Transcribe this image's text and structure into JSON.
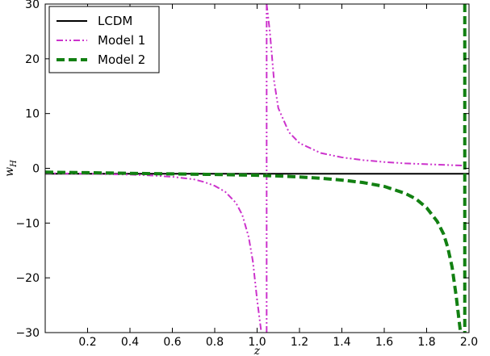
{
  "chart_data": {
    "type": "line",
    "title": "",
    "xlabel": "z",
    "ylabel_main": "w",
    "ylabel_sub": "H",
    "xlim": [
      0.0,
      2.0
    ],
    "ylim": [
      -30,
      30
    ],
    "xticks": [
      0.2,
      0.4,
      0.6,
      0.8,
      1.0,
      1.2,
      1.4,
      1.6,
      1.8,
      2.0
    ],
    "xtick_labels": [
      "0.2",
      "0.4",
      "0.6",
      "0.8",
      "1.0",
      "1.2",
      "1.4",
      "1.6",
      "1.8",
      "2.0"
    ],
    "yticks": [
      -30,
      -20,
      -10,
      0,
      10,
      20,
      30
    ],
    "ytick_labels": [
      "−30",
      "−20",
      "−10",
      "0",
      "10",
      "20",
      "30"
    ],
    "grid": false,
    "legend_position": "top-left",
    "series": [
      {
        "name": "LCDM",
        "color": "#000000",
        "style": "solid",
        "segments": [
          [
            [
              0.0,
              -1.0
            ],
            [
              2.0,
              -1.0
            ]
          ]
        ]
      },
      {
        "name": "Model 1",
        "color": "#cc33cc",
        "style": "dashdot",
        "segments": [
          [
            [
              0.0,
              -0.9
            ],
            [
              0.2,
              -1.0
            ],
            [
              0.4,
              -1.15
            ],
            [
              0.5,
              -1.3
            ],
            [
              0.6,
              -1.55
            ],
            [
              0.7,
              -2.0
            ],
            [
              0.75,
              -2.5
            ],
            [
              0.8,
              -3.2
            ],
            [
              0.85,
              -4.3
            ],
            [
              0.9,
              -6.3
            ],
            [
              0.93,
              -8.5
            ],
            [
              0.96,
              -12.5
            ],
            [
              0.98,
              -17.0
            ],
            [
              1.0,
              -24.0
            ],
            [
              1.02,
              -30.0
            ]
          ],
          [
            [
              1.045,
              30.0
            ],
            [
              1.06,
              25.0
            ],
            [
              1.08,
              16.0
            ],
            [
              1.1,
              11.0
            ],
            [
              1.15,
              6.6
            ],
            [
              1.2,
              4.6
            ],
            [
              1.3,
              2.8
            ],
            [
              1.4,
              2.0
            ],
            [
              1.5,
              1.5
            ],
            [
              1.6,
              1.15
            ],
            [
              1.7,
              0.9
            ],
            [
              1.8,
              0.75
            ],
            [
              1.9,
              0.6
            ],
            [
              1.98,
              0.5
            ]
          ]
        ],
        "verticals": [
          1.045
        ]
      },
      {
        "name": "Model 2",
        "color": "#128012",
        "style": "dashed",
        "segments": [
          [
            [
              0.0,
              -0.7
            ],
            [
              0.2,
              -0.8
            ],
            [
              0.4,
              -0.92
            ],
            [
              0.6,
              -1.02
            ],
            [
              0.8,
              -1.12
            ],
            [
              1.0,
              -1.28
            ],
            [
              1.1,
              -1.4
            ],
            [
              1.2,
              -1.58
            ],
            [
              1.3,
              -1.82
            ],
            [
              1.4,
              -2.15
            ],
            [
              1.5,
              -2.6
            ],
            [
              1.6,
              -3.3
            ],
            [
              1.7,
              -4.6
            ],
            [
              1.75,
              -5.6
            ],
            [
              1.8,
              -7.2
            ],
            [
              1.85,
              -9.7
            ],
            [
              1.88,
              -12.0
            ],
            [
              1.9,
              -14.5
            ],
            [
              1.92,
              -18.0
            ],
            [
              1.94,
              -23.5
            ],
            [
              1.96,
              -30.0
            ]
          ]
        ],
        "verticals": [
          1.98
        ]
      }
    ]
  }
}
